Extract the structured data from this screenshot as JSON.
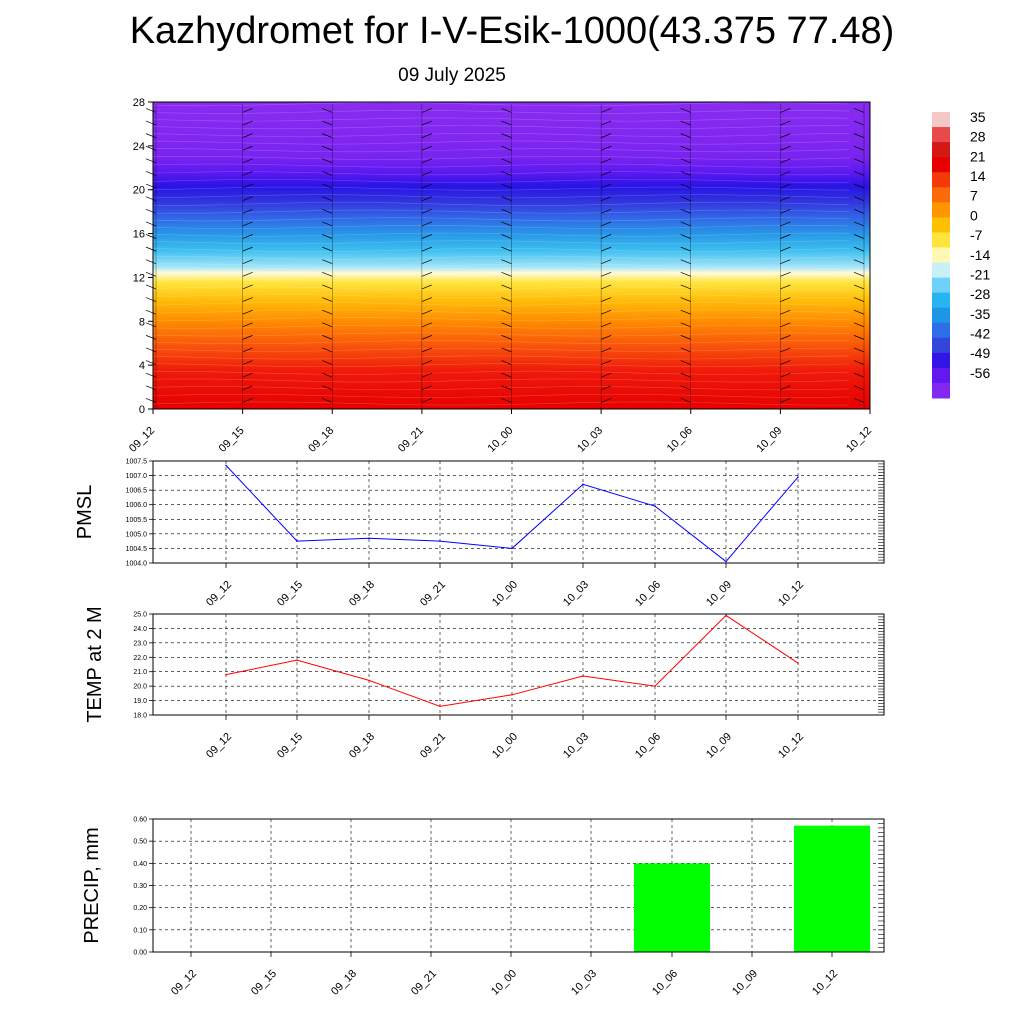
{
  "header": {
    "title": "Kazhydromet for I-V-Esik-1000(43.375 77.48)",
    "date": "09 July 2025"
  },
  "time_labels": [
    "09_12",
    "09_15",
    "09_18",
    "09_21",
    "10_00",
    "10_03",
    "10_06",
    "10_09",
    "10_12"
  ],
  "chart_data": [
    {
      "type": "heatmap",
      "name": "temperature_profile",
      "x": [
        "09_12",
        "09_15",
        "09_18",
        "09_21",
        "10_00",
        "10_03",
        "10_06",
        "10_09",
        "10_12"
      ],
      "y_ticks": [
        0,
        4,
        8,
        12,
        16,
        20,
        24,
        28
      ],
      "ylim": [
        0,
        28
      ],
      "colorbar_labels": [
        "35",
        "28",
        "21",
        "14",
        "7",
        "0",
        "-7",
        "-14",
        "-21",
        "-28",
        "-35",
        "-42",
        "-49",
        "-56"
      ],
      "colorbar_colors": [
        "#f5c8c8",
        "#e8494a",
        "#d41818",
        "#e60000",
        "#f43a08",
        "#fb6a0a",
        "#ff9600",
        "#ffc000",
        "#ffe43c",
        "#fff8b4",
        "#c8f0f8",
        "#6ed2f8",
        "#28b4f0",
        "#1e96e6",
        "#2d6ee6",
        "#3246dc",
        "#3214e6",
        "#6418f0",
        "#8228f0"
      ],
      "bands": [
        {
          "y": 0,
          "color": "#e60000"
        },
        {
          "y": 3.5,
          "color": "#f01a0a"
        },
        {
          "y": 6,
          "color": "#fa5a0a"
        },
        {
          "y": 8,
          "color": "#ff8c00"
        },
        {
          "y": 10,
          "color": "#ffbe0a"
        },
        {
          "y": 11.6,
          "color": "#ffe640"
        },
        {
          "y": 12.4,
          "color": "#fffadc"
        },
        {
          "y": 13,
          "color": "#a0e4f8"
        },
        {
          "y": 14.5,
          "color": "#3cbef0"
        },
        {
          "y": 16,
          "color": "#2896e6"
        },
        {
          "y": 17.5,
          "color": "#3264e6"
        },
        {
          "y": 19,
          "color": "#3232dc"
        },
        {
          "y": 20.3,
          "color": "#2814e6"
        },
        {
          "y": 21.5,
          "color": "#5a18f0"
        },
        {
          "y": 23,
          "color": "#7a24f0"
        },
        {
          "y": 28,
          "color": "#8a2cf0"
        }
      ]
    },
    {
      "type": "line",
      "name": "PMSL",
      "ylabel": "PMSL",
      "categories": [
        "09_12",
        "09_15",
        "09_18",
        "09_21",
        "10_00",
        "10_03",
        "10_06",
        "10_09",
        "10_12"
      ],
      "values": [
        1007.35,
        1004.75,
        1004.85,
        1004.75,
        1004.5,
        1006.7,
        1005.95,
        1004.05,
        1006.95
      ],
      "ylim": [
        1004.0,
        1007.5
      ],
      "yticks": [
        "1004.0",
        "1004.5",
        "1005.0",
        "1005.5",
        "1006.0",
        "1006.5",
        "1007.0",
        "1007.5"
      ],
      "color": "#0000ff",
      "grid": true
    },
    {
      "type": "line",
      "name": "TEMP",
      "ylabel": "TEMP at 2 M",
      "categories": [
        "09_12",
        "09_15",
        "09_18",
        "09_21",
        "10_00",
        "10_03",
        "10_06",
        "10_09",
        "10_12"
      ],
      "values": [
        20.8,
        21.8,
        20.4,
        18.6,
        19.4,
        20.7,
        20.0,
        24.9,
        21.6
      ],
      "ylim": [
        18.0,
        25.0
      ],
      "yticks": [
        "18.0",
        "19.0",
        "20.0",
        "21.0",
        "22.0",
        "23.0",
        "24.0",
        "25.0"
      ],
      "color": "#ff0000",
      "grid": true
    },
    {
      "type": "bar",
      "name": "PRECIP",
      "ylabel": "PRECIP, mm",
      "categories": [
        "09_12",
        "09_15",
        "09_18",
        "09_21",
        "10_00",
        "10_03",
        "10_06",
        "10_09",
        "10_12"
      ],
      "values": [
        0,
        0,
        0,
        0,
        0,
        0,
        0.4,
        0,
        0.57
      ],
      "ylim": [
        0,
        0.6
      ],
      "yticks": [
        "0.00",
        "0.10",
        "0.20",
        "0.30",
        "0.40",
        "0.50",
        "0.60"
      ],
      "color": "#00ff00",
      "grid": true
    }
  ]
}
